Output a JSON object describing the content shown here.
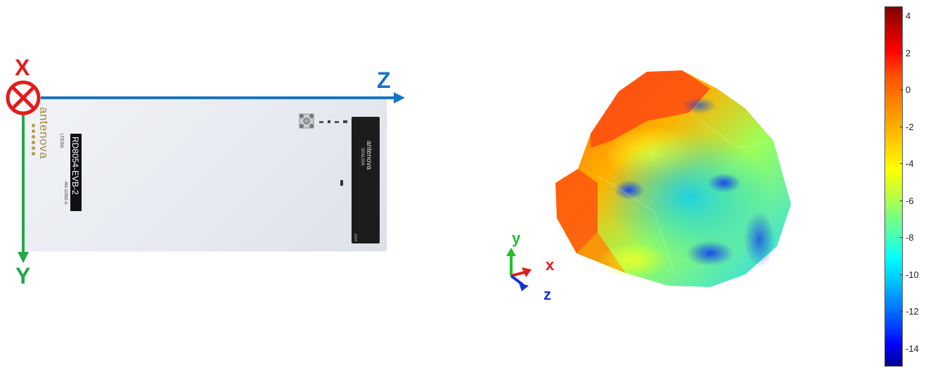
{
  "board": {
    "logo": "antenova",
    "label": "RD8054-EVB-2",
    "label_small_top": "LTE/5G",
    "label_small_bottom": "AN-11502-A"
  },
  "antenna_chip": {
    "brand": "antenova",
    "part": "SR4L054",
    "foot": "1044"
  },
  "axes": {
    "x_label": "X",
    "y_label": "Y",
    "z_label": "Z",
    "x_color": "#e41b1b",
    "y_color": "#21a94a",
    "z_color": "#1874c6"
  },
  "triad": {
    "x_label": "x",
    "y_label": "y",
    "z_label": "z"
  },
  "colorbar": {
    "ticks": [
      "4",
      "2",
      "0",
      "-2",
      "-4",
      "-6",
      "-8",
      "-10",
      "-12",
      "-14"
    ],
    "min": -15,
    "max": 4.5,
    "colormap": "jet"
  }
}
